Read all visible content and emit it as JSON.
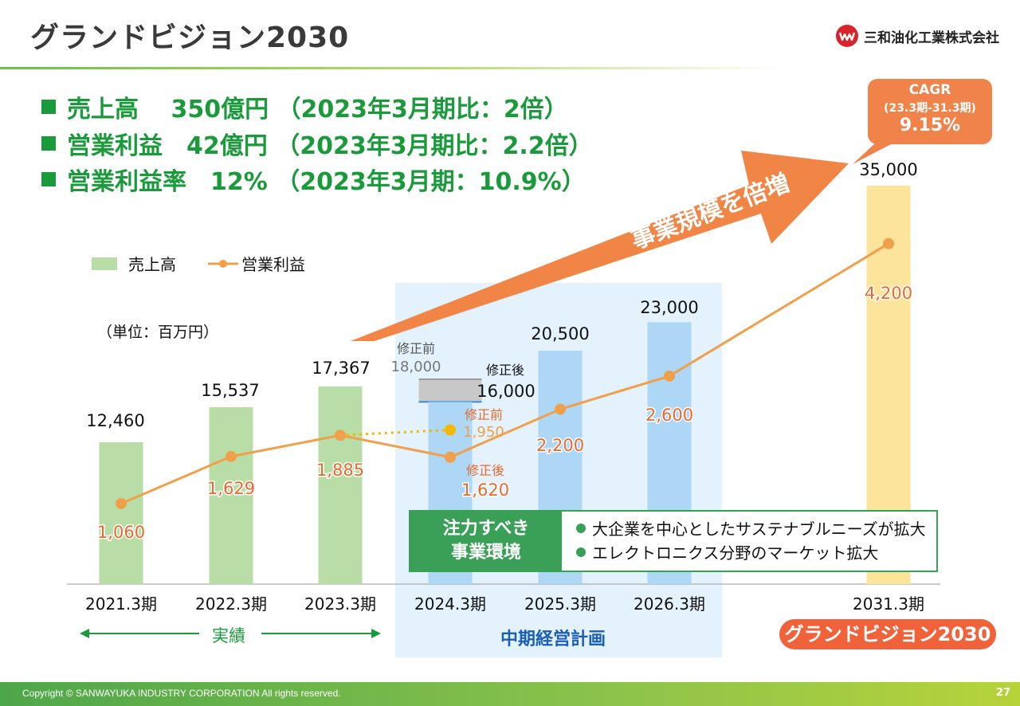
{
  "header": {
    "title": "グランドビジョン2030",
    "company": "三和油化工業株式会社"
  },
  "headlines": [
    "売上高　 350億円 （2023年3月期比：2倍）",
    "営業利益　42億円 （2023年3月期比：2.2倍）",
    "営業利益率　12% （2023年3月期：10.9%）"
  ],
  "cagr": {
    "label": "CAGR",
    "period": "(23.3期-31.3期)",
    "value": "9.15%"
  },
  "arrow_text": "事業規模を倍増",
  "legend": {
    "sales": "売上高",
    "profit": "営業利益"
  },
  "unit": "（単位：百万円）",
  "env": {
    "label_line1": "注力すべき",
    "label_line2": "事業環境",
    "items": [
      "大企業を中心としたサステナブルニーズが拡大",
      "エレクトロニクス分野のマーケット拡大"
    ]
  },
  "period_labels": {
    "actual": "実績",
    "plan": "中期経営計画",
    "grand_vision": "グランドビジョン2030"
  },
  "revision": {
    "before": "修正前",
    "after": "修正後"
  },
  "footer": {
    "copyright": "Copyright © SANWAYUKA INDUSTRY CORPORATION All rights reserved.",
    "page": "27"
  },
  "colors": {
    "actual_bar": "#b9dda6",
    "plan_bar": "#aed6f5",
    "goal_bar": "#fce49a",
    "line": "#f0a04b",
    "line_label": "#e8692e",
    "revision_before_bar": "#c8c8c8",
    "revision_before_point": "#f5b800",
    "accent_green": "#1a9a3a",
    "plan_band": "#e3f2fc",
    "arrow": "#f07e3c"
  },
  "chart_data": {
    "type": "bar",
    "categories": [
      "2021.3期",
      "2022.3期",
      "2023.3期",
      "2024.3期",
      "2025.3期",
      "2026.3期",
      "2031.3期"
    ],
    "series": [
      {
        "name": "売上高",
        "type": "bar",
        "values": [
          12460,
          15537,
          17367,
          16000,
          20500,
          23000,
          35000
        ]
      },
      {
        "name": "営業利益",
        "type": "line",
        "values": [
          1060,
          1629,
          1885,
          1620,
          2200,
          2600,
          4200
        ]
      }
    ],
    "value_labels": {
      "sales": [
        "12,460",
        "15,537",
        "17,367",
        "16,000",
        "20,500",
        "23,000",
        "35,000"
      ],
      "profit": [
        "1,060",
        "1,629",
        "1,885",
        "1,620",
        "2,200",
        "2,600",
        "4,200"
      ]
    },
    "revision_before": {
      "category": "2024.3期",
      "sales": 18000,
      "sales_label": "18,000",
      "profit": 1950,
      "profit_label": "1,950"
    }
  }
}
